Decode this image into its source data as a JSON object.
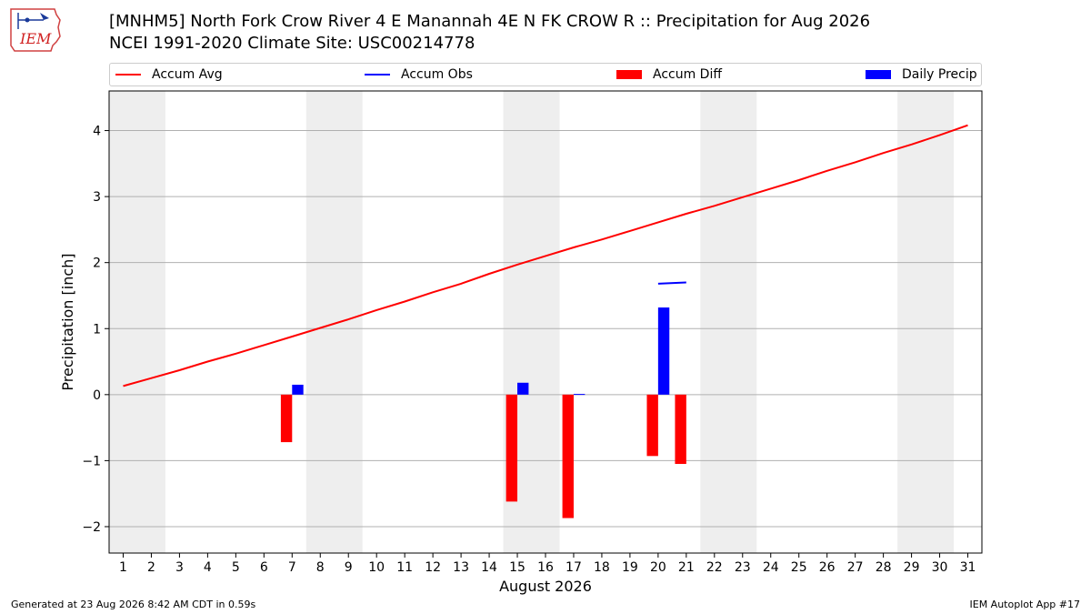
{
  "header": {
    "logo_text": "IEM",
    "title_line1": "[MNHM5] North Fork Crow River 4 E Manannah 4E N FK CROW R :: Precipitation for Aug 2026",
    "title_line2": "NCEI 1991-2020 Climate Site: USC00214778"
  },
  "legend": {
    "items": [
      {
        "label": "Accum Avg",
        "kind": "line",
        "color": "#ff0000"
      },
      {
        "label": "Accum Obs",
        "kind": "line",
        "color": "#0000ff"
      },
      {
        "label": "Accum Diff",
        "kind": "patch",
        "color": "#ff0000"
      },
      {
        "label": "Daily Precip",
        "kind": "patch",
        "color": "#0000ff"
      }
    ]
  },
  "footer": {
    "generated": "Generated at 23 Aug 2026 8:42 AM CDT in 0.59s",
    "app": "IEM Autoplot App #17"
  },
  "chart_data": {
    "type": "bar",
    "xlabel": "August 2026",
    "ylabel": "Precipitation [inch]",
    "x_ticks": [
      1,
      2,
      3,
      4,
      5,
      6,
      7,
      8,
      9,
      10,
      11,
      12,
      13,
      14,
      15,
      16,
      17,
      18,
      19,
      20,
      21,
      22,
      23,
      24,
      25,
      26,
      27,
      28,
      29,
      30,
      31
    ],
    "xlim": [
      0.5,
      31.5
    ],
    "ylim": [
      -2.4,
      4.6
    ],
    "y_ticks": [
      -2,
      -1,
      0,
      1,
      2,
      3,
      4
    ],
    "y_tick_labels": [
      "−2",
      "−1",
      "0",
      "1",
      "2",
      "3",
      "4"
    ],
    "grid": "horizontal",
    "legend_placement": "top",
    "weekend_shading": [
      [
        0.5,
        2.5
      ],
      [
        7.5,
        9.5
      ],
      [
        14.5,
        16.5
      ],
      [
        21.5,
        23.5
      ],
      [
        28.5,
        30.5
      ]
    ],
    "shade_color": "#eeeeee",
    "series": [
      {
        "name": "Accum Avg",
        "kind": "line",
        "color": "#ff0000",
        "x": [
          1,
          2,
          3,
          4,
          5,
          6,
          7,
          8,
          9,
          10,
          11,
          12,
          13,
          14,
          15,
          16,
          17,
          18,
          19,
          20,
          21,
          22,
          23,
          24,
          25,
          26,
          27,
          28,
          29,
          30,
          31
        ],
        "values": [
          0.13,
          0.25,
          0.37,
          0.5,
          0.62,
          0.75,
          0.88,
          1.01,
          1.14,
          1.28,
          1.41,
          1.55,
          1.68,
          1.83,
          1.97,
          2.1,
          2.23,
          2.35,
          2.48,
          2.61,
          2.74,
          2.86,
          2.99,
          3.12,
          3.25,
          3.39,
          3.52,
          3.66,
          3.79,
          3.93,
          4.08
        ]
      },
      {
        "name": "Accum Obs",
        "kind": "line",
        "color": "#0000ff",
        "x": [
          20,
          21
        ],
        "values": [
          1.68,
          1.7
        ]
      },
      {
        "name": "Accum Diff",
        "kind": "bar",
        "color": "#ff0000",
        "offset": -0.2,
        "width": 0.4,
        "x": [
          7,
          15,
          17,
          20,
          21
        ],
        "values": [
          -0.72,
          -1.62,
          -1.87,
          -0.93,
          -1.05
        ]
      },
      {
        "name": "Daily Precip",
        "kind": "bar",
        "color": "#0000ff",
        "offset": 0.2,
        "width": 0.4,
        "x": [
          7,
          15,
          17,
          20
        ],
        "values": [
          0.15,
          0.18,
          0.01,
          1.32
        ]
      }
    ]
  }
}
